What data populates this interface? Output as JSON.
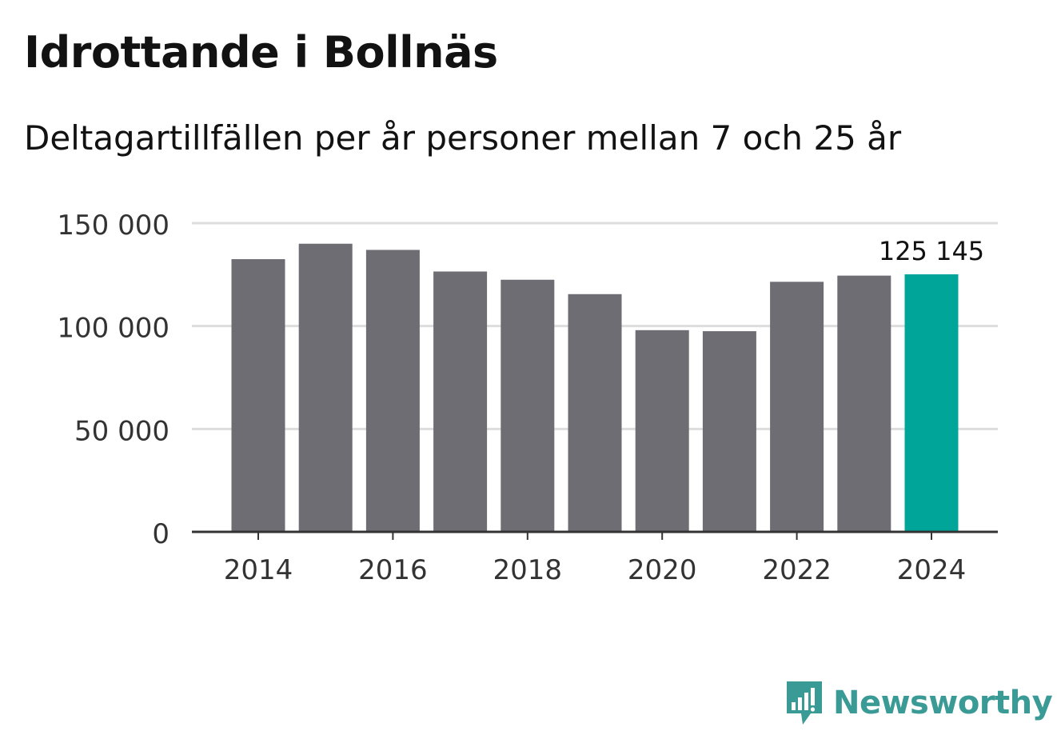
{
  "title": "Idrottande i Bollnäs",
  "subtitle": "Deltagartillfällen per år personer mellan 7 och 25 år",
  "brand": {
    "name": "Newsworthy",
    "icon": "bar-chart-speech-bubble-icon",
    "color": "#3a9a95"
  },
  "colors": {
    "bar": "#6e6d73",
    "highlight": "#00a59a",
    "grid": "#dddddd",
    "axis": "#333333"
  },
  "chart_data": {
    "type": "bar",
    "title": "Idrottande i Bollnäs",
    "subtitle": "Deltagartillfällen per år personer mellan 7 och 25 år",
    "xlabel": "",
    "ylabel": "",
    "categories": [
      "2014",
      "2015",
      "2016",
      "2017",
      "2018",
      "2019",
      "2020",
      "2021",
      "2022",
      "2023",
      "2024"
    ],
    "values": [
      132500,
      140000,
      137000,
      126500,
      122500,
      115500,
      98000,
      97500,
      121500,
      124500,
      125145
    ],
    "ylim": [
      0,
      150000
    ],
    "yticks": [
      0,
      50000,
      100000,
      150000
    ],
    "ytick_labels": [
      "0",
      "50 000",
      "100 000",
      "150 000"
    ],
    "xtick_labels": [
      "2014",
      "2016",
      "2018",
      "2020",
      "2022",
      "2024"
    ],
    "highlight_index": 10,
    "highlight_label": "125 145",
    "grid": true,
    "legend": "none"
  }
}
